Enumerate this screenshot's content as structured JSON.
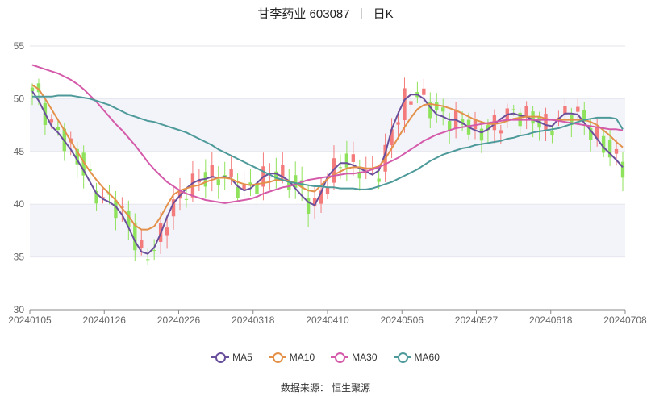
{
  "title": {
    "name": "甘李药业 603087",
    "period": "日K"
  },
  "source": "数据来源： 恒生聚源",
  "chart_data": {
    "type": "candlestick+line",
    "y_range": [
      30,
      55
    ],
    "y_ticks": [
      "30",
      "35",
      "40",
      "45",
      "50",
      "55"
    ],
    "x_tick_labels": [
      "20240105",
      "20240126",
      "20240226",
      "20240318",
      "20240410",
      "20240506",
      "20240527",
      "20240618",
      "20240708"
    ],
    "up_color": "#f37b7b",
    "down_color": "#8fe25b",
    "legend_position": "bottom",
    "series": [
      {
        "name": "MA5",
        "color": "#6a4f9c",
        "values": [
          50.7,
          49.8,
          48.6,
          47.4,
          46.8,
          46.0,
          45.2,
          44.2,
          43.2,
          42.1,
          41.0,
          40.5,
          40.2,
          39.8,
          39.0,
          37.8,
          36.5,
          35.5,
          35.3,
          35.9,
          37.2,
          38.8,
          40.1,
          40.8,
          41.5,
          42.0,
          42.3,
          42.4,
          42.6,
          42.5,
          42.6,
          42.4,
          41.7,
          41.3,
          41.5,
          42.0,
          42.6,
          42.9,
          42.9,
          42.6,
          42.2,
          41.5,
          40.8,
          40.2,
          39.9,
          41.1,
          42.6,
          43.3,
          43.9,
          43.9,
          43.7,
          43.4,
          43.1,
          42.8,
          43.2,
          44.8,
          47.1,
          48.6,
          49.9,
          50.4,
          50.4,
          50.0,
          49.2,
          48.5,
          48.3,
          48.0,
          48.0,
          47.7,
          47.3,
          47.0,
          46.8,
          47.1,
          47.6,
          48.1,
          48.5,
          48.6,
          48.4,
          48.3,
          48.0,
          47.8,
          47.5,
          47.4,
          48.1,
          48.6,
          48.6,
          48.5,
          47.7,
          47.0,
          46.2,
          45.4,
          44.8,
          44.2,
          43.5
        ]
      },
      {
        "name": "MA10",
        "color": "#e3914a",
        "values": [
          51.3,
          50.9,
          50.0,
          49.0,
          48.0,
          47.0,
          46.0,
          45.0,
          44.0,
          43.1,
          42.3,
          41.6,
          41.0,
          40.4,
          39.6,
          38.9,
          38.0,
          37.6,
          37.6,
          37.9,
          38.8,
          39.9,
          40.9,
          41.3,
          41.5,
          41.7,
          41.8,
          42.1,
          42.3,
          42.5,
          42.5,
          42.4,
          42.1,
          41.9,
          41.8,
          41.9,
          42.0,
          42.1,
          42.3,
          42.3,
          42.2,
          42.0,
          41.6,
          41.3,
          41.2,
          41.8,
          42.4,
          42.8,
          43.1,
          43.4,
          43.5,
          43.5,
          43.4,
          43.4,
          43.6,
          44.3,
          45.3,
          46.3,
          47.3,
          48.2,
          49.0,
          49.4,
          49.5,
          49.4,
          49.3,
          49.1,
          48.9,
          48.6,
          48.3,
          48.0,
          47.8,
          47.6,
          47.6,
          47.7,
          47.9,
          48.1,
          48.2,
          48.3,
          48.3,
          48.3,
          48.1,
          48.0,
          48.0,
          48.0,
          48.0,
          48.0,
          48.0,
          47.8,
          47.5,
          47.0,
          46.5,
          45.9,
          45.4
        ]
      },
      {
        "name": "MA30",
        "color": "#d45aaa",
        "values": [
          53.2,
          53.0,
          52.8,
          52.6,
          52.4,
          52.1,
          51.8,
          51.4,
          50.9,
          50.3,
          49.7,
          49.0,
          48.3,
          47.6,
          47.0,
          46.3,
          45.6,
          44.8,
          44.0,
          43.3,
          42.7,
          42.1,
          41.7,
          41.3,
          41.0,
          40.8,
          40.6,
          40.4,
          40.3,
          40.2,
          40.1,
          40.2,
          40.3,
          40.4,
          40.5,
          40.7,
          41.0,
          41.2,
          41.4,
          41.6,
          41.7,
          41.9,
          42.1,
          42.3,
          42.4,
          42.5,
          42.6,
          42.7,
          42.8,
          42.9,
          42.9,
          43.0,
          43.1,
          43.3,
          43.5,
          43.8,
          44.1,
          44.4,
          44.8,
          45.2,
          45.6,
          46.0,
          46.3,
          46.6,
          46.8,
          47.0,
          47.2,
          47.3,
          47.4,
          47.5,
          47.6,
          47.7,
          47.8,
          47.9,
          48.0,
          48.0,
          48.0,
          48.0,
          48.0,
          48.0,
          48.0,
          48.0,
          47.9,
          47.8,
          47.7,
          47.6,
          47.5,
          47.4,
          47.3,
          47.2,
          47.1,
          47.1,
          47.0
        ]
      },
      {
        "name": "MA60",
        "color": "#4e9a9a",
        "values": [
          50.2,
          50.2,
          50.2,
          50.2,
          50.3,
          50.3,
          50.3,
          50.2,
          50.1,
          50.0,
          49.8,
          49.6,
          49.4,
          49.1,
          48.8,
          48.5,
          48.3,
          48.1,
          47.9,
          47.8,
          47.6,
          47.4,
          47.2,
          47.0,
          46.8,
          46.5,
          46.2,
          45.9,
          45.6,
          45.2,
          44.9,
          44.6,
          44.3,
          44.0,
          43.7,
          43.4,
          43.1,
          42.8,
          42.5,
          42.3,
          42.1,
          42.0,
          41.9,
          41.8,
          41.7,
          41.7,
          41.6,
          41.6,
          41.5,
          41.5,
          41.5,
          41.4,
          41.4,
          41.5,
          41.7,
          41.9,
          42.1,
          42.4,
          42.7,
          43.0,
          43.3,
          43.7,
          44.1,
          44.4,
          44.7,
          44.9,
          45.1,
          45.3,
          45.4,
          45.6,
          45.7,
          45.8,
          45.9,
          46.0,
          46.2,
          46.3,
          46.5,
          46.6,
          46.8,
          46.9,
          47.0,
          47.1,
          47.2,
          47.4,
          47.6,
          47.8,
          48.0,
          48.1,
          48.2,
          48.2,
          48.2,
          48.1,
          47.1
        ]
      }
    ]
  }
}
